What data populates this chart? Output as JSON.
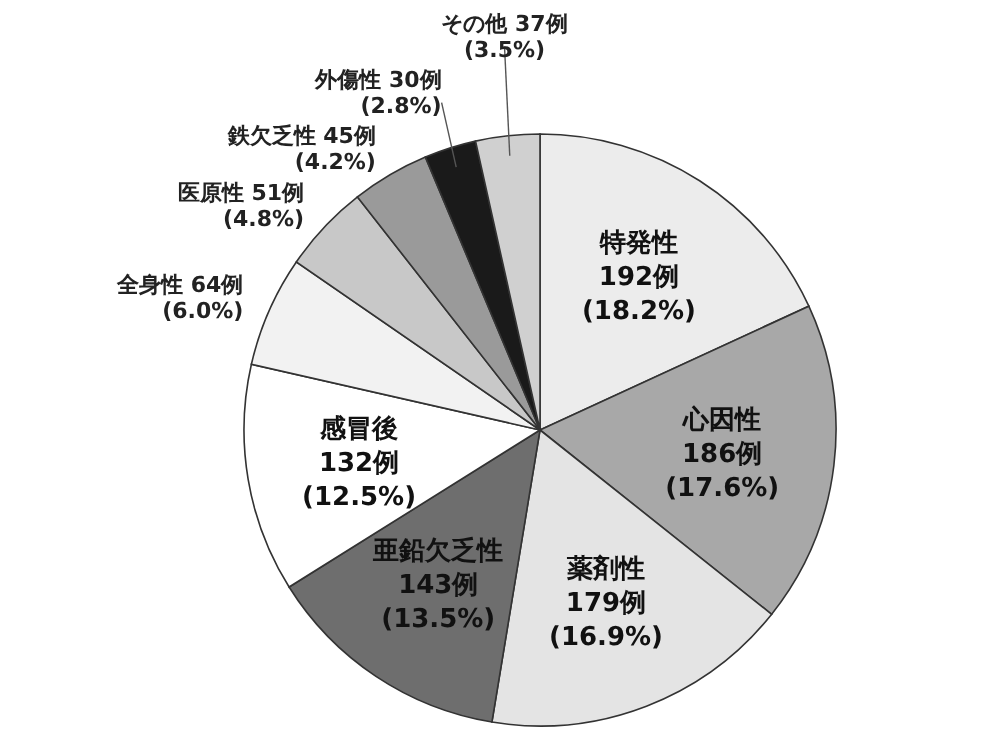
{
  "chart_data": {
    "type": "pie",
    "categories": [
      "特発性",
      "心因性",
      "薬剤性",
      "亜鉛欠乏性",
      "感冒後",
      "全身性",
      "医原性",
      "鉄欠乏性",
      "外傷性",
      "その他"
    ],
    "values": [
      192,
      186,
      179,
      143,
      132,
      64,
      51,
      45,
      30,
      37
    ],
    "value_labels": [
      "192例 (18.2%)",
      "186例 (17.6%)",
      "179例 (16.9%)",
      "143例 (13.5%)",
      "132例 (12.5%)",
      "64例 (6.0%)",
      "51例 (4.8%)",
      "45例 (4.2%)",
      "30例 (2.8%)",
      "37例 (3.5%)"
    ],
    "colors": [
      "#ececec",
      "#a8a8a8",
      "#e4e4e4",
      "#6e6e6e",
      "#ffffff",
      "#f2f2f2",
      "#c8c8c8",
      "#9a9a9a",
      "#1a1a1a",
      "#d0d0d0"
    ]
  }
}
